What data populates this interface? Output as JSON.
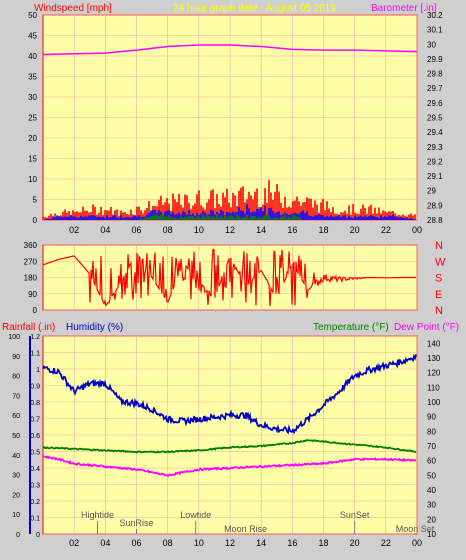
{
  "header": {
    "left_label": "Windspeed [mph]",
    "center_label": "24 hour graph date - August 05 2019",
    "right_label": "Barometer [.in]"
  },
  "panel_bottom_labels": {
    "rainfall": "Rainfall (.in)",
    "humidity": "Humidity (%)",
    "temperature": "Temperature (°F)",
    "dewpoint": "Dew Point (°F)"
  },
  "colors": {
    "background": "#cfcfcf",
    "plot_bg": "#ffffa8",
    "grid": "#f4a8a8",
    "axis_red": "#ff0000",
    "windspeed": "#ff0000",
    "windgust_blue": "#0000ff",
    "windavg_green": "#008000",
    "barometer": "#ff00ff",
    "humidity": "#0000c8",
    "temperature": "#008000",
    "dewpoint": "#ff00ff",
    "header_center": "#ffff00"
  },
  "chart_data": [
    {
      "type": "line",
      "name": "wind-barometer",
      "x_ticks": [
        "02",
        "04",
        "06",
        "08",
        "10",
        "12",
        "14",
        "16",
        "18",
        "20",
        "22",
        "00"
      ],
      "left_axis": {
        "label": "Windspeed [mph]",
        "ylim": [
          0,
          50
        ],
        "ticks": [
          "0",
          "5",
          "10",
          "15",
          "20",
          "25",
          "30",
          "35",
          "40",
          "45",
          "50"
        ]
      },
      "right_axis": {
        "label": "Barometer [.in]",
        "ylim": [
          28.8,
          30.2
        ],
        "ticks": [
          "28.8",
          "28.9",
          "29",
          "29.1",
          "29.2",
          "29.3",
          "29.4",
          "29.5",
          "29.6",
          "29.7",
          "29.8",
          "29.9",
          "30",
          "30.1",
          "30.2"
        ]
      },
      "series": [
        {
          "name": "Barometer",
          "axis": "right",
          "x": [
            0,
            2,
            4,
            6,
            8,
            10,
            12,
            14,
            16,
            18,
            20,
            22,
            24
          ],
          "values": [
            29.93,
            29.935,
            29.94,
            29.96,
            29.985,
            29.995,
            29.995,
            29.985,
            29.965,
            29.96,
            29.96,
            29.955,
            29.95
          ]
        }
      ],
      "wind_bars": {
        "x": [
          0,
          1,
          2,
          3,
          4,
          5,
          6,
          7,
          8,
          9,
          10,
          11,
          12,
          13,
          14,
          15,
          16,
          17,
          18,
          19,
          20,
          21,
          22,
          23,
          24
        ],
        "gust": [
          1,
          2,
          2,
          3,
          3,
          2,
          3,
          4,
          5,
          5,
          6,
          6,
          6,
          7,
          8,
          7,
          6,
          5,
          4,
          3,
          3,
          3,
          2,
          2,
          1
        ],
        "speed": [
          0,
          1,
          1,
          1,
          1,
          1,
          1,
          2,
          2,
          2,
          2,
          2,
          2,
          3,
          3,
          2,
          2,
          2,
          1,
          1,
          1,
          1,
          1,
          1,
          0
        ],
        "average": [
          0,
          0,
          0,
          0,
          0,
          0,
          0,
          1,
          1,
          1,
          1,
          1,
          1,
          1,
          1,
          1,
          1,
          0,
          0,
          0,
          0,
          0,
          0,
          0,
          0
        ]
      }
    },
    {
      "type": "line",
      "name": "wind-direction",
      "ylim": [
        0,
        360
      ],
      "left_ticks": [
        "0",
        "90",
        "180",
        "270",
        "360"
      ],
      "right_labels": [
        "N",
        "W",
        "S",
        "E",
        "N"
      ],
      "series": [
        {
          "name": "Wind direction",
          "x": [
            0,
            1,
            2,
            3,
            4,
            5,
            6,
            7,
            8,
            9,
            10,
            11,
            12,
            13,
            14,
            15,
            16,
            17,
            18,
            19,
            20,
            21,
            22,
            23,
            24
          ],
          "values": [
            250,
            280,
            300,
            200,
            20,
            150,
            320,
            180,
            40,
            260,
            160,
            60,
            300,
            130,
            220,
            60,
            260,
            110,
            180,
            170,
            175,
            180,
            178,
            180,
            180
          ]
        }
      ]
    },
    {
      "type": "line",
      "name": "humidity-temperature",
      "x_ticks": [
        "02",
        "04",
        "06",
        "08",
        "10",
        "12",
        "14",
        "16",
        "18",
        "20",
        "22",
        "00"
      ],
      "left_axis_rain": {
        "label": "Rainfall (.in)",
        "ylim": [
          0,
          1.2
        ],
        "ticks": [
          "0",
          "0.1",
          "0.2",
          "0.3",
          "0.4",
          "0.5",
          "0.6",
          "0.7",
          "0.8",
          "0.9",
          "1",
          "1.1",
          "1.2"
        ]
      },
      "left_axis_humidity": {
        "label": "Humidity (%)",
        "ylim": [
          0,
          100
        ],
        "ticks": [
          "0",
          "10",
          "20",
          "30",
          "40",
          "50",
          "60",
          "70",
          "80",
          "90",
          "100"
        ]
      },
      "right_axis": {
        "label": "Temperature (°F)",
        "ylim": [
          10,
          145
        ],
        "ticks": [
          "10",
          "20",
          "30",
          "40",
          "50",
          "60",
          "70",
          "80",
          "90",
          "100",
          "110",
          "120",
          "130",
          "140"
        ]
      },
      "series": [
        {
          "name": "Humidity",
          "axis": "humidity",
          "x": [
            0,
            1,
            2,
            3,
            4,
            5,
            6,
            7,
            8,
            9,
            10,
            11,
            12,
            13,
            14,
            15,
            16,
            17,
            18,
            19,
            20,
            21,
            22,
            23,
            24
          ],
          "values": [
            84,
            82,
            72,
            76,
            76,
            67,
            66,
            63,
            58,
            57,
            58,
            59,
            60,
            60,
            55,
            53,
            52,
            58,
            65,
            72,
            80,
            83,
            85,
            87,
            90
          ]
        },
        {
          "name": "Temperature",
          "axis": "right",
          "x": [
            0,
            2,
            4,
            6,
            8,
            10,
            12,
            14,
            16,
            17,
            18,
            20,
            22,
            24
          ],
          "values": [
            69,
            68,
            67,
            66,
            66,
            67,
            69,
            70,
            72,
            74,
            73,
            71,
            69,
            66
          ]
        },
        {
          "name": "Dew Point",
          "axis": "right",
          "x": [
            0,
            1,
            2,
            4,
            6,
            8,
            9,
            10,
            12,
            14,
            16,
            18,
            20,
            22,
            24
          ],
          "values": [
            63,
            61,
            58,
            56,
            54,
            50,
            52,
            54,
            55,
            56,
            57,
            58,
            61,
            61,
            60
          ]
        }
      ],
      "events": [
        {
          "label": "Hightide",
          "x": 3.5
        },
        {
          "label": "SunRise",
          "x": 6.0
        },
        {
          "label": "Lowtide",
          "x": 9.8
        },
        {
          "label": "Moon Rise",
          "x": 13.0
        },
        {
          "label": "SunSet",
          "x": 20.0
        },
        {
          "label": "Moon Set",
          "x": 24.0
        }
      ]
    }
  ]
}
